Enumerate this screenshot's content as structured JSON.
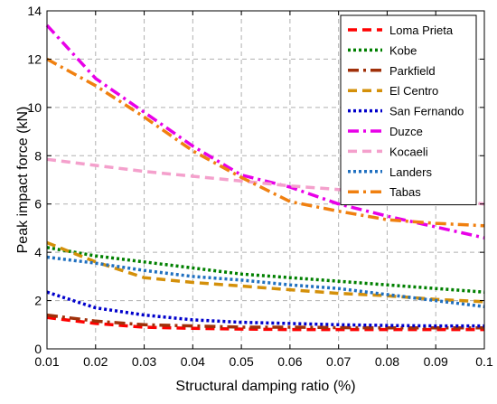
{
  "chart_data": {
    "type": "line",
    "xlabel": "Structural damping ratio (%)",
    "ylabel": "Peak impact force (kN)",
    "xlim": [
      0.01,
      0.1
    ],
    "ylim": [
      0,
      14
    ],
    "xticks": [
      "0.01",
      "0.02",
      "0.03",
      "0.04",
      "0.05",
      "0.06",
      "0.07",
      "0.08",
      "0.09",
      "0.1"
    ],
    "yticks": [
      "0",
      "2",
      "4",
      "6",
      "8",
      "10",
      "12",
      "14"
    ],
    "grid": true,
    "legend_position": "top-right",
    "series": [
      {
        "name": "Loma Prieta",
        "color": "#ff0000",
        "dash": "dash",
        "x": [
          0.01,
          0.02,
          0.03,
          0.04,
          0.05,
          0.06,
          0.07,
          0.08,
          0.09,
          0.1
        ],
        "y": [
          1.3,
          1.05,
          0.9,
          0.85,
          0.82,
          0.8,
          0.8,
          0.8,
          0.8,
          0.8
        ]
      },
      {
        "name": "Kobe",
        "color": "#008000",
        "dash": "dot",
        "x": [
          0.01,
          0.02,
          0.03,
          0.04,
          0.05,
          0.06,
          0.07,
          0.08,
          0.09,
          0.1
        ],
        "y": [
          4.2,
          3.85,
          3.6,
          3.35,
          3.1,
          2.95,
          2.8,
          2.65,
          2.5,
          2.35
        ]
      },
      {
        "name": "Parkfield",
        "color": "#a0300a",
        "dash": "dashdot",
        "x": [
          0.01,
          0.02,
          0.03,
          0.04,
          0.05,
          0.06,
          0.07,
          0.08,
          0.09,
          0.1
        ],
        "y": [
          1.4,
          1.15,
          1.0,
          0.95,
          0.9,
          0.9,
          0.88,
          0.87,
          0.87,
          0.87
        ]
      },
      {
        "name": "El Centro",
        "color": "#d4900a",
        "dash": "dash",
        "x": [
          0.01,
          0.02,
          0.03,
          0.04,
          0.05,
          0.06,
          0.07,
          0.08,
          0.09,
          0.1
        ],
        "y": [
          4.4,
          3.6,
          2.95,
          2.75,
          2.6,
          2.45,
          2.3,
          2.2,
          2.05,
          1.95
        ]
      },
      {
        "name": "San Fernando",
        "color": "#0000cc",
        "dash": "dot",
        "x": [
          0.01,
          0.02,
          0.03,
          0.04,
          0.05,
          0.06,
          0.07,
          0.08,
          0.09,
          0.1
        ],
        "y": [
          2.35,
          1.7,
          1.4,
          1.2,
          1.1,
          1.05,
          1.0,
          0.97,
          0.95,
          0.95
        ]
      },
      {
        "name": "Duzce",
        "color": "#e800e8",
        "dash": "dashdot",
        "x": [
          0.01,
          0.02,
          0.03,
          0.04,
          0.05,
          0.06,
          0.07,
          0.08,
          0.09,
          0.1
        ],
        "y": [
          13.4,
          11.2,
          9.8,
          8.4,
          7.2,
          6.7,
          6.0,
          5.5,
          5.05,
          4.6
        ]
      },
      {
        "name": "Kocaeli",
        "color": "#f4a0cc",
        "dash": "dash",
        "x": [
          0.01,
          0.02,
          0.03,
          0.04,
          0.05,
          0.06,
          0.07,
          0.08,
          0.09,
          0.1
        ],
        "y": [
          7.85,
          7.6,
          7.35,
          7.15,
          6.95,
          6.75,
          6.6,
          6.4,
          6.2,
          6.0
        ]
      },
      {
        "name": "Landers",
        "color": "#2070c0",
        "dash": "dot",
        "x": [
          0.01,
          0.02,
          0.03,
          0.04,
          0.05,
          0.06,
          0.07,
          0.08,
          0.09,
          0.1
        ],
        "y": [
          3.8,
          3.55,
          3.25,
          3.0,
          2.85,
          2.65,
          2.5,
          2.25,
          2.0,
          1.75
        ]
      },
      {
        "name": "Tabas",
        "color": "#f08010",
        "dash": "dashdot",
        "x": [
          0.01,
          0.02,
          0.03,
          0.04,
          0.05,
          0.06,
          0.07,
          0.08,
          0.09,
          0.1
        ],
        "y": [
          12.0,
          10.9,
          9.6,
          8.2,
          7.1,
          6.1,
          5.7,
          5.35,
          5.2,
          5.1
        ]
      }
    ]
  }
}
